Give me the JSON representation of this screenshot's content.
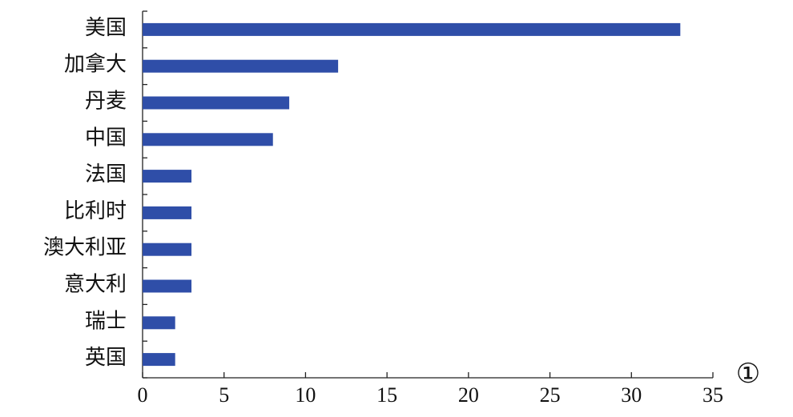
{
  "chart_data": {
    "type": "barh",
    "categories": [
      "美国",
      "加拿大",
      "丹麦",
      "中国",
      "法国",
      "比利时",
      "澳大利亚",
      "意大利",
      "瑞士",
      "英国"
    ],
    "values": [
      33,
      12,
      9,
      8,
      3,
      3,
      3,
      3,
      2,
      2
    ],
    "color": "#2f4ea8",
    "xlim": [
      0,
      35
    ],
    "xticks": [
      0,
      5,
      10,
      15,
      20,
      25,
      30,
      35
    ],
    "panel_label": "①"
  }
}
